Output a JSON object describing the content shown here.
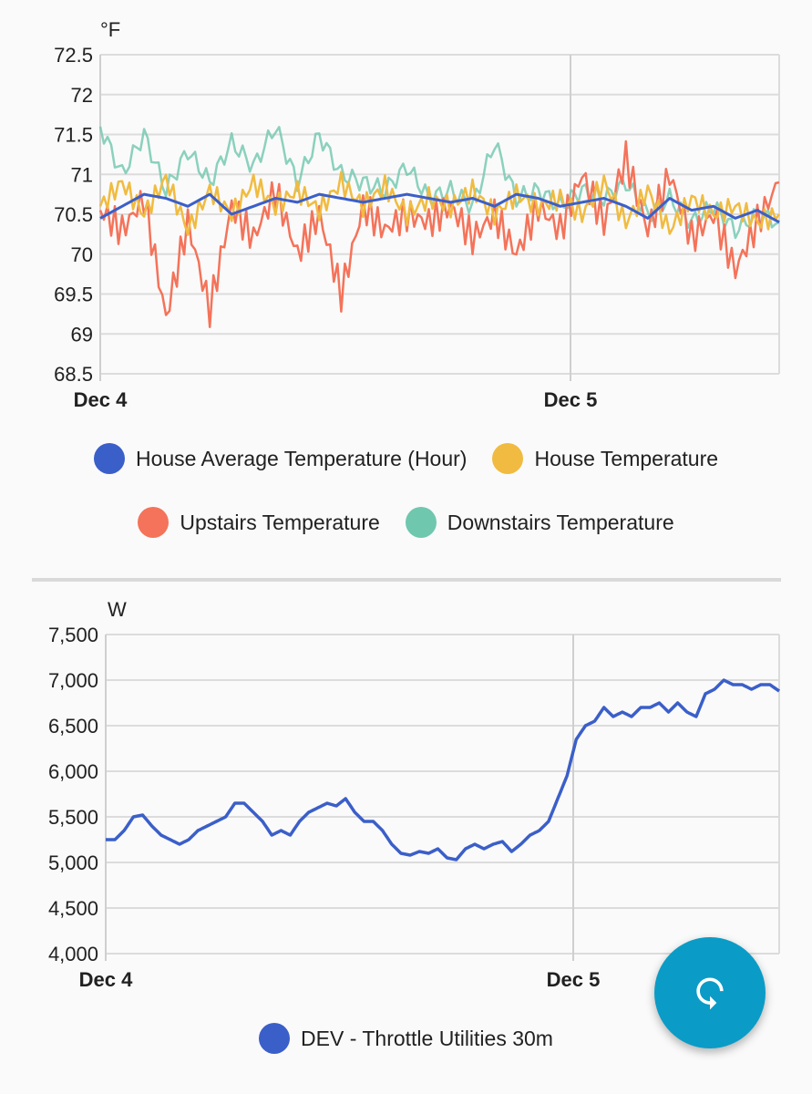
{
  "chart_data": [
    {
      "type": "line",
      "unit_label": "°F",
      "ylim": [
        68.5,
        72.5
      ],
      "y_ticks": [
        "72.5",
        "72",
        "71.5",
        "71",
        "70.5",
        "70",
        "69.5",
        "69",
        "68.5"
      ],
      "x_tick_labels": [
        "Dec 4",
        "Dec 5"
      ],
      "grid": true,
      "legend_position": "bottom",
      "series": [
        {
          "name": "House Average Temperature (Hour)",
          "color": "#3b5fc9",
          "values": [
            70.45,
            70.6,
            70.75,
            70.7,
            70.6,
            70.75,
            70.5,
            70.6,
            70.7,
            70.65,
            70.75,
            70.7,
            70.65,
            70.7,
            70.75,
            70.7,
            70.65,
            70.7,
            70.6,
            70.75,
            70.7,
            70.6,
            70.65,
            70.7,
            70.6,
            70.45,
            70.7,
            70.55,
            70.6,
            70.45,
            70.55,
            70.4
          ]
        },
        {
          "name": "House Temperature",
          "color": "#f0bb40",
          "values": [
            70.6,
            70.9,
            70.5,
            70.95,
            70.3,
            70.8,
            70.5,
            70.9,
            70.6,
            70.8,
            70.55,
            70.9,
            70.6,
            70.85,
            70.5,
            70.7,
            70.6,
            70.8,
            70.5,
            70.75,
            70.6,
            70.7,
            70.5,
            70.9,
            70.4,
            70.8,
            70.3,
            70.7,
            70.5,
            70.6,
            70.4,
            70.5
          ]
        },
        {
          "name": "Upstairs Temperature",
          "color": "#f4735a",
          "values": [
            70.55,
            70.3,
            70.7,
            69.2,
            70.4,
            69.3,
            70.6,
            70.2,
            70.8,
            70.0,
            70.5,
            69.5,
            70.6,
            70.3,
            70.5,
            70.4,
            70.6,
            70.2,
            70.5,
            70.0,
            70.6,
            70.3,
            71.0,
            70.4,
            71.2,
            70.3,
            71.0,
            70.2,
            70.5,
            69.8,
            70.4,
            70.9
          ]
        },
        {
          "name": "Downstairs Temperature",
          "color": "#6fc7ae",
          "values": [
            71.6,
            71.0,
            71.5,
            70.8,
            71.3,
            70.9,
            71.4,
            71.1,
            71.6,
            70.9,
            71.5,
            71.0,
            70.9,
            70.8,
            71.1,
            70.7,
            70.8,
            70.6,
            71.4,
            70.7,
            70.8,
            70.6,
            70.8,
            70.7,
            70.9,
            70.5,
            70.7,
            70.4,
            70.6,
            70.3,
            70.5,
            70.4
          ]
        }
      ]
    },
    {
      "type": "line",
      "unit_label": "W",
      "ylim": [
        4000,
        7500
      ],
      "y_ticks": [
        "7,500",
        "7,000",
        "6,500",
        "6,000",
        "5,500",
        "5,000",
        "4,500",
        "4,000"
      ],
      "x_tick_labels": [
        "Dec 4",
        "Dec 5"
      ],
      "grid": true,
      "legend_position": "bottom",
      "series": [
        {
          "name": "DEV - Throttle Utilities 30m",
          "color": "#3b5fc9",
          "values": [
            5250,
            5250,
            5350,
            5500,
            5520,
            5400,
            5300,
            5250,
            5200,
            5250,
            5350,
            5400,
            5450,
            5500,
            5650,
            5650,
            5550,
            5450,
            5300,
            5350,
            5300,
            5450,
            5550,
            5600,
            5650,
            5620,
            5700,
            5550,
            5450,
            5450,
            5350,
            5200,
            5100,
            5080,
            5120,
            5100,
            5150,
            5050,
            5030,
            5150,
            5200,
            5150,
            5200,
            5230,
            5120,
            5200,
            5300,
            5350,
            5450,
            5700,
            5950,
            6350,
            6500,
            6550,
            6700,
            6600,
            6650,
            6600,
            6700,
            6700,
            6750,
            6650,
            6750,
            6650,
            6600,
            6850,
            6900,
            7000,
            6950,
            6950,
            6900,
            6950,
            6950,
            6880
          ]
        }
      ]
    }
  ],
  "fab": {
    "icon": "refresh-icon",
    "color": "#0a9cc6"
  }
}
